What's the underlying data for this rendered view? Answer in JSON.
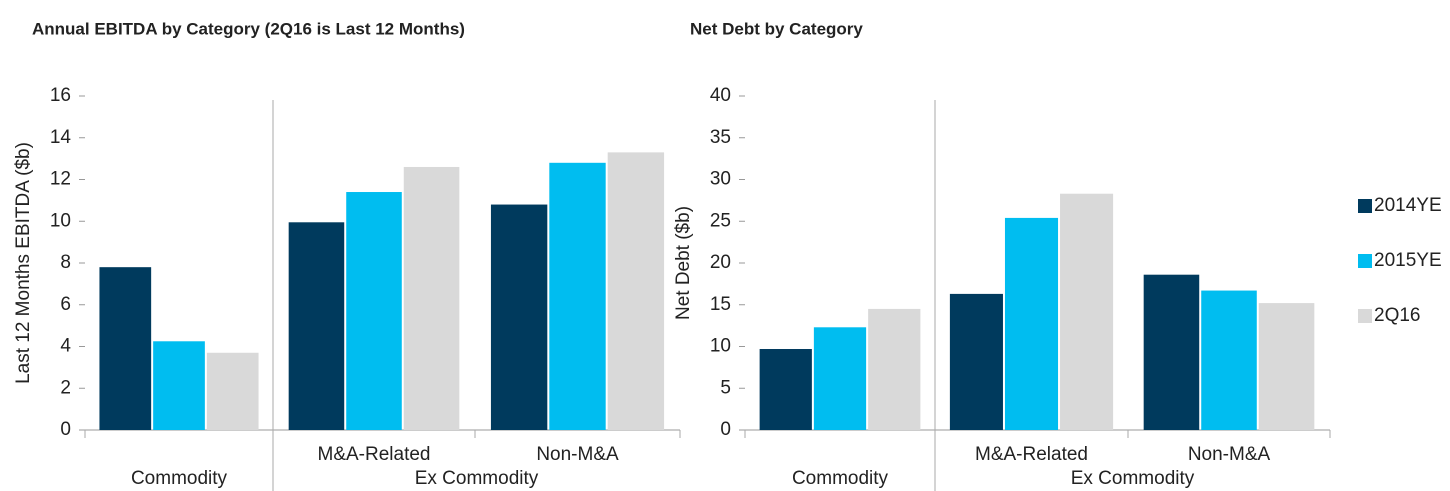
{
  "chart_data": [
    {
      "type": "bar",
      "title": "Annual EBITDA by Category (2Q16 is Last 12 Months)",
      "y_label": "Last 12 Months EBITDA ($b)",
      "category_groups": [
        {
          "name": "Commodity",
          "categories": [
            null
          ]
        },
        {
          "name": "Ex Commodity",
          "categories": [
            "M&A-Related",
            "Non-M&A"
          ]
        }
      ],
      "series": [
        {
          "color": "#003a5d",
          "values": [
            7.8,
            9.95,
            10.8
          ]
        },
        {
          "color": "#00bdf0",
          "values": [
            4.25,
            11.4,
            12.8
          ]
        },
        {
          "color": "#d9d9d9",
          "values": [
            3.7,
            12.6,
            13.3
          ]
        }
      ],
      "ylim": [
        0,
        16
      ],
      "yticks": [
        0,
        2,
        4,
        6,
        8,
        10,
        12,
        14,
        16
      ]
    },
    {
      "type": "bar",
      "title": "Net Debt by Category",
      "y_label": "Net Debt ($b)",
      "category_groups": [
        {
          "name": "Commodity",
          "categories": [
            null
          ]
        },
        {
          "name": "Ex Commodity",
          "categories": [
            "M&A-Related",
            "Non-M&A"
          ]
        }
      ],
      "series": [
        {
          "name": "2014YE",
          "color": "#003a5d",
          "values": [
            9.7,
            16.3,
            18.6
          ]
        },
        {
          "name": "2015YE",
          "color": "#00bdf0",
          "values": [
            12.3,
            25.4,
            16.7
          ]
        },
        {
          "name": "2Q16",
          "color": "#d9d9d9",
          "values": [
            14.5,
            28.3,
            15.2
          ]
        }
      ],
      "ylim": [
        0,
        40
      ],
      "yticks": [
        0,
        5,
        10,
        15,
        20,
        25,
        30,
        35,
        40
      ],
      "legend": "right"
    }
  ]
}
